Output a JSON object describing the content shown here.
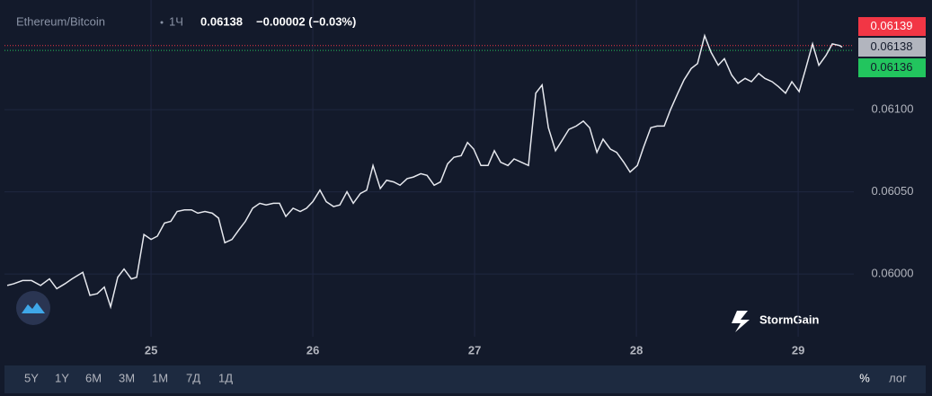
{
  "header": {
    "symbol": "Ethereum/Bitcoin",
    "interval": "1Ч",
    "last": 0.06138,
    "change": "−0.00002 (−0.03%)"
  },
  "chart_data": {
    "type": "line",
    "color": "#e6e8ee",
    "x": [
      24.111,
      24.15,
      24.206,
      24.261,
      24.317,
      24.372,
      24.417,
      24.467,
      24.511,
      24.578,
      24.622,
      24.667,
      24.711,
      24.75,
      24.794,
      24.833,
      24.878,
      24.911,
      24.956,
      25,
      25.039,
      25.083,
      25.122,
      25.161,
      25.206,
      25.25,
      25.289,
      25.333,
      25.378,
      25.417,
      25.456,
      25.5,
      25.544,
      25.583,
      25.628,
      25.672,
      25.711,
      25.756,
      25.794,
      25.833,
      25.878,
      25.922,
      25.961,
      26,
      26.044,
      26.083,
      26.128,
      26.167,
      26.211,
      26.25,
      26.294,
      26.333,
      26.372,
      26.417,
      26.456,
      26.5,
      26.539,
      26.583,
      26.622,
      26.667,
      26.706,
      26.75,
      26.789,
      26.833,
      26.872,
      26.917,
      26.956,
      26.994,
      27.039,
      27.083,
      27.122,
      27.161,
      27.206,
      27.244,
      27.289,
      27.333,
      27.378,
      27.417,
      27.456,
      27.5,
      27.539,
      27.583,
      27.628,
      27.672,
      27.711,
      27.756,
      27.794,
      27.839,
      27.878,
      27.922,
      27.961,
      28.006,
      28.044,
      28.089,
      28.128,
      28.172,
      28.211,
      28.256,
      28.294,
      28.339,
      28.378,
      28.422,
      28.461,
      28.506,
      28.544,
      28.589,
      28.628,
      28.672,
      28.711,
      28.756,
      28.794,
      28.839,
      28.878,
      28.922,
      28.961,
      29.006,
      29.044,
      29.089,
      29.128,
      29.172,
      29.211,
      29.256,
      29.272
    ],
    "values": [
      0.05993,
      0.05994,
      0.05996,
      0.05996,
      0.05993,
      0.05997,
      0.05991,
      0.05994,
      0.05997,
      0.06001,
      0.05987,
      0.05988,
      0.05992,
      0.0598,
      0.05998,
      0.06003,
      0.05997,
      0.05998,
      0.06024,
      0.06021,
      0.06023,
      0.06031,
      0.06032,
      0.06038,
      0.06039,
      0.06039,
      0.06037,
      0.06038,
      0.06037,
      0.06034,
      0.06019,
      0.06021,
      0.06027,
      0.06032,
      0.0604,
      0.06043,
      0.06042,
      0.06043,
      0.06043,
      0.06035,
      0.0604,
      0.06038,
      0.0604,
      0.06044,
      0.06051,
      0.06044,
      0.06041,
      0.06042,
      0.0605,
      0.06043,
      0.06049,
      0.06051,
      0.06066,
      0.06052,
      0.06057,
      0.06056,
      0.06054,
      0.06058,
      0.06059,
      0.06061,
      0.0606,
      0.06054,
      0.06056,
      0.06067,
      0.06071,
      0.06072,
      0.0608,
      0.06076,
      0.06066,
      0.06066,
      0.06075,
      0.06068,
      0.06066,
      0.0607,
      0.06068,
      0.06066,
      0.0611,
      0.06115,
      0.06089,
      0.06075,
      0.06081,
      0.06088,
      0.0609,
      0.06093,
      0.06089,
      0.06074,
      0.06082,
      0.06076,
      0.06074,
      0.06068,
      0.06062,
      0.06066,
      0.06077,
      0.06089,
      0.0609,
      0.0609,
      0.061,
      0.0611,
      0.06118,
      0.06125,
      0.06128,
      0.06145,
      0.06135,
      0.06127,
      0.06131,
      0.06121,
      0.06116,
      0.06119,
      0.06117,
      0.06122,
      0.06119,
      0.06117,
      0.06114,
      0.0611,
      0.06117,
      0.06111,
      0.06124,
      0.0614,
      0.06127,
      0.06133,
      0.0614,
      0.06139,
      0.06138
    ],
    "xlim": [
      24.094,
      29.344
    ],
    "xticks": [
      25,
      26,
      27,
      28,
      29
    ],
    "ylim": [
      0.059618,
      0.061667
    ],
    "yticks": [
      {
        "value": 0.06,
        "label": "0.06000"
      },
      {
        "value": 0.0605,
        "label": "0.06050"
      },
      {
        "value": 0.061,
        "label": "0.06100"
      }
    ],
    "grid": true,
    "ask": 0.06139,
    "ask_color": "#f23645",
    "last": 0.06138,
    "last_color": "#b2b5be",
    "bid": 0.06136,
    "bid_color": "#22c55e"
  },
  "range_buttons": [
    "5Y",
    "1Y",
    "6M",
    "3M",
    "1M",
    "7Д",
    "1Д"
  ],
  "toggles": [
    "%",
    "лог"
  ],
  "brand": "StormGain"
}
